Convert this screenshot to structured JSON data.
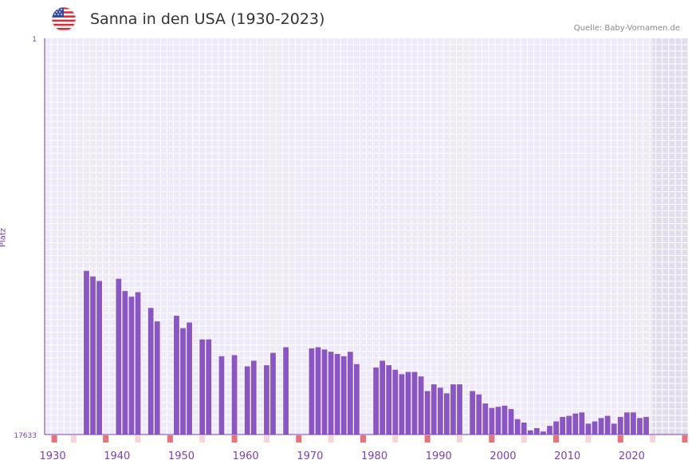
{
  "header": {
    "title": "Sanna in den USA (1930-2023)",
    "source": "Quelle: Baby-Vornamen.de",
    "flag_icon": "us-flag-icon"
  },
  "colors": {
    "bar": "#8c55c4",
    "grid_bg": "#efeaf9",
    "grid_line": "#ffffff",
    "future_bg": "#e2dcee",
    "axis": "#7b3fb0",
    "marker_strong": "#e4737b",
    "marker_light": "#f7d4d8"
  },
  "chart_data": {
    "type": "bar",
    "title": "Sanna in den USA (1930-2023)",
    "xlabel": "",
    "ylabel": "Platz",
    "y_axis_inverted": true,
    "ylim": [
      1,
      17633
    ],
    "yticks": [
      "1",
      "17633"
    ],
    "xlim": [
      1929,
      2029
    ],
    "xticks": [
      1930,
      1940,
      1950,
      1960,
      1970,
      1980,
      1990,
      2000,
      2010,
      2020
    ],
    "future_shaded_from": 2024,
    "series": [
      {
        "name": "Sanna",
        "points": [
          {
            "year": 1935,
            "rank": 10350
          },
          {
            "year": 1936,
            "rank": 10600
          },
          {
            "year": 1937,
            "rank": 10800
          },
          {
            "year": 1940,
            "rank": 10700
          },
          {
            "year": 1941,
            "rank": 11250
          },
          {
            "year": 1942,
            "rank": 11500
          },
          {
            "year": 1943,
            "rank": 11300
          },
          {
            "year": 1945,
            "rank": 12000
          },
          {
            "year": 1946,
            "rank": 12600
          },
          {
            "year": 1949,
            "rank": 12350
          },
          {
            "year": 1950,
            "rank": 12900
          },
          {
            "year": 1951,
            "rank": 12650
          },
          {
            "year": 1953,
            "rank": 13400
          },
          {
            "year": 1954,
            "rank": 13400
          },
          {
            "year": 1956,
            "rank": 14150
          },
          {
            "year": 1958,
            "rank": 14100
          },
          {
            "year": 1960,
            "rank": 14600
          },
          {
            "year": 1961,
            "rank": 14350
          },
          {
            "year": 1963,
            "rank": 14550
          },
          {
            "year": 1964,
            "rank": 14000
          },
          {
            "year": 1966,
            "rank": 13750
          },
          {
            "year": 1970,
            "rank": 13800
          },
          {
            "year": 1971,
            "rank": 13750
          },
          {
            "year": 1972,
            "rank": 13850
          },
          {
            "year": 1973,
            "rank": 13950
          },
          {
            "year": 1974,
            "rank": 14050
          },
          {
            "year": 1975,
            "rank": 14150
          },
          {
            "year": 1976,
            "rank": 13950
          },
          {
            "year": 1977,
            "rank": 14500
          },
          {
            "year": 1980,
            "rank": 14650
          },
          {
            "year": 1981,
            "rank": 14350
          },
          {
            "year": 1982,
            "rank": 14550
          },
          {
            "year": 1983,
            "rank": 14750
          },
          {
            "year": 1984,
            "rank": 14950
          },
          {
            "year": 1985,
            "rank": 14850
          },
          {
            "year": 1986,
            "rank": 14850
          },
          {
            "year": 1987,
            "rank": 15050
          },
          {
            "year": 1988,
            "rank": 15700
          },
          {
            "year": 1989,
            "rank": 15400
          },
          {
            "year": 1990,
            "rank": 15550
          },
          {
            "year": 1991,
            "rank": 15800
          },
          {
            "year": 1992,
            "rank": 15400
          },
          {
            "year": 1993,
            "rank": 15400
          },
          {
            "year": 1995,
            "rank": 15700
          },
          {
            "year": 1996,
            "rank": 15850
          },
          {
            "year": 1997,
            "rank": 16250
          },
          {
            "year": 1998,
            "rank": 16450
          },
          {
            "year": 1999,
            "rank": 16400
          },
          {
            "year": 2000,
            "rank": 16350
          },
          {
            "year": 2001,
            "rank": 16500
          },
          {
            "year": 2002,
            "rank": 16950
          },
          {
            "year": 2003,
            "rank": 17100
          },
          {
            "year": 2004,
            "rank": 17450
          },
          {
            "year": 2005,
            "rank": 17350
          },
          {
            "year": 2006,
            "rank": 17500
          },
          {
            "year": 2007,
            "rank": 17250
          },
          {
            "year": 2008,
            "rank": 17050
          },
          {
            "year": 2009,
            "rank": 16850
          },
          {
            "year": 2010,
            "rank": 16800
          },
          {
            "year": 2011,
            "rank": 16700
          },
          {
            "year": 2012,
            "rank": 16650
          },
          {
            "year": 2013,
            "rank": 17150
          },
          {
            "year": 2014,
            "rank": 17050
          },
          {
            "year": 2015,
            "rank": 16900
          },
          {
            "year": 2016,
            "rank": 16800
          },
          {
            "year": 2017,
            "rank": 17150
          },
          {
            "year": 2018,
            "rank": 16850
          },
          {
            "year": 2019,
            "rank": 16650
          },
          {
            "year": 2020,
            "rank": 16650
          },
          {
            "year": 2021,
            "rank": 16900
          },
          {
            "year": 2022,
            "rank": 16850
          }
        ]
      }
    ],
    "year_markers": {
      "strong": [
        1930,
        1938,
        1948,
        1958,
        1968,
        1978,
        1988,
        1998,
        2008,
        2018,
        2028
      ],
      "light": [
        1933,
        1943,
        1953,
        1963,
        1973,
        1983,
        1993,
        2003,
        2013,
        2023
      ]
    }
  }
}
